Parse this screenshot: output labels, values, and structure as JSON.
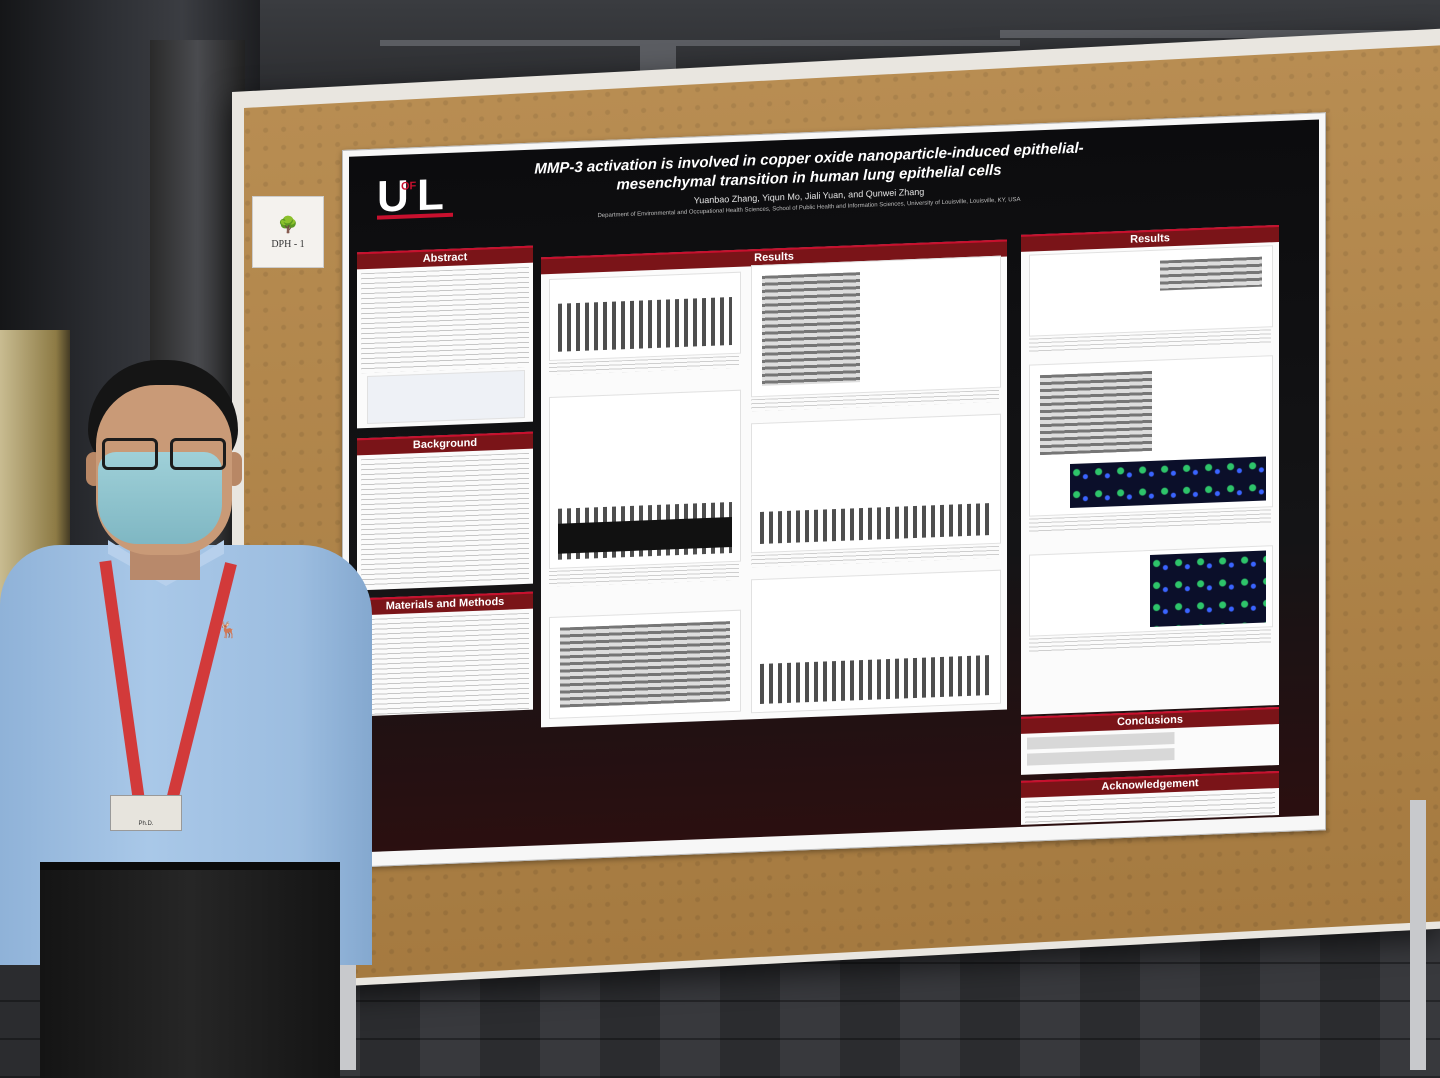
{
  "tag": {
    "icon": "tree-icon",
    "text": "DPH - 1"
  },
  "poster": {
    "logo": {
      "u": "U",
      "of": "OF",
      "l": "L"
    },
    "title": "MMP-3 activation is involved in copper oxide nanoparticle-induced epithelial-mesenchymal transition in human lung epithelial cells",
    "authors": "Yuanbao Zhang,  Yiqun Mo,  Jiali Yuan,  and  Qunwei Zhang",
    "affiliation": "Department of Environmental and Occupational Health Sciences, School of Public Health and Information Sciences, University of Louisville, Louisville, KY, USA",
    "sections": {
      "abstract": "Abstract",
      "background": "Background",
      "materials": "Materials and Methods",
      "results_center": "Results",
      "results_right": "Results",
      "conclusions": "Conclusions",
      "acknowledgement": "Acknowledgement"
    }
  },
  "badge": {
    "text": "Ph.D."
  },
  "colors": {
    "poster_red": "#c8102e",
    "cork": "#b88d52",
    "shirt": "#a9c8e8",
    "mask": "#9fd0d8",
    "lanyard": "#d23a3a"
  }
}
